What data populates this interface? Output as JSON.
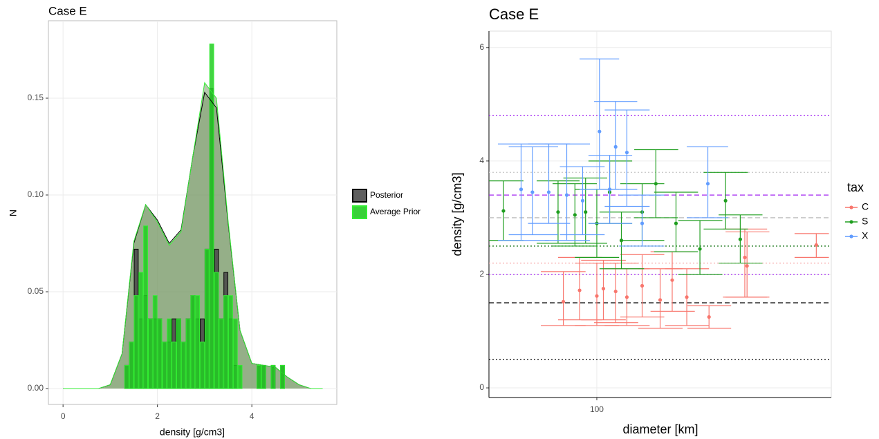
{
  "chart_data": [
    {
      "type": "histogram",
      "title": "Case E",
      "x_label": "density [g/cm3]",
      "y_label": "N",
      "xlim": [
        -0.31,
        5.8
      ],
      "ylim": [
        -0.0082,
        0.19
      ],
      "xticks": [
        0,
        2,
        4
      ],
      "yticks": [
        {
          "value": 0,
          "label": "0.00"
        },
        {
          "value": 0.05,
          "label": "0.05"
        },
        {
          "value": 0.1,
          "label": "0.10"
        },
        {
          "value": 0.15,
          "label": "0.15"
        }
      ],
      "grid": true,
      "bins": [
        1.2,
        1.3,
        1.4,
        1.5,
        1.6,
        1.7,
        1.8,
        1.9,
        2.0,
        2.1,
        2.2,
        2.3,
        2.4,
        2.5,
        2.6,
        2.7,
        2.8,
        2.9,
        3.0,
        3.1,
        3.2,
        3.3,
        3.4,
        3.5,
        3.6,
        3.7,
        3.8,
        3.9,
        4.0,
        4.1,
        4.2,
        4.3,
        4.4,
        4.5,
        4.6,
        4.7
      ],
      "density_x": [
        0,
        0.25,
        0.5,
        0.75,
        1,
        1.25,
        1.5,
        1.75,
        2,
        2.25,
        2.5,
        2.75,
        3,
        3.25,
        3.5,
        3.75,
        4,
        4.25,
        4.5,
        4.75,
        5,
        5.25,
        5.5
      ],
      "series": [
        {
          "name": "Posterior",
          "color": "#000000",
          "fill": "#4d4d4d",
          "counts": [
            0,
            0.012,
            0.024,
            0.072,
            0.036,
            0.048,
            0.036,
            0.036,
            0.036,
            0.024,
            0.024,
            0.036,
            0.036,
            0.024,
            0.036,
            0.048,
            0.036,
            0.036,
            0.072,
            0.155,
            0.072,
            0.036,
            0.06,
            0.036,
            0.012,
            0,
            0,
            0,
            0,
            0.012,
            0.012,
            0,
            0.012,
            0,
            0.012
          ],
          "density_values": [
            0,
            0,
            0,
            0,
            0.002,
            0.018,
            0.075,
            0.095,
            0.087,
            0.075,
            0.082,
            0.12,
            0.153,
            0.145,
            0.085,
            0.03,
            0.013,
            0.012,
            0.011,
            0.006,
            0.002,
            0,
            0
          ]
        },
        {
          "name": "Average Prior",
          "color": "#33ee33",
          "fill": "#22cc22",
          "counts": [
            0,
            0.012,
            0.024,
            0.048,
            0.06,
            0.084,
            0.036,
            0.048,
            0.036,
            0.024,
            0.036,
            0.024,
            0.036,
            0.024,
            0.036,
            0.048,
            0.048,
            0.024,
            0.072,
            0.178,
            0.06,
            0.036,
            0.048,
            0.048,
            0.036,
            0.012,
            0,
            0,
            0,
            0.012,
            0.012,
            0,
            0.012,
            0,
            0.012
          ],
          "density_values": [
            0,
            0,
            0,
            0,
            0.002,
            0.018,
            0.076,
            0.095,
            0.086,
            0.074,
            0.081,
            0.12,
            0.158,
            0.15,
            0.086,
            0.03,
            0.013,
            0.012,
            0.011,
            0.006,
            0.002,
            0,
            0
          ]
        }
      ]
    },
    {
      "type": "scatter",
      "title": "Case E",
      "x_label": "diameter [km]",
      "y_label": "density [g/cm3]",
      "log_x": true,
      "xlim": [
        44.9,
        570
      ],
      "ylim": [
        -0.17,
        6.29
      ],
      "xticks": [
        100
      ],
      "yticks": [
        0,
        2,
        4,
        6
      ],
      "grid": true,
      "legend_title": "tax",
      "hlines": [
        {
          "value": 0.5,
          "color": "#000000",
          "dash": "dotted"
        },
        {
          "value": 1.5,
          "color": "#000000",
          "dash": "dashed"
        },
        {
          "value": 2.0,
          "color": "#a020f0",
          "dash": "dotted"
        },
        {
          "value": 2.2,
          "color": "#f8b0b0",
          "dash": "dotted"
        },
        {
          "value": 2.5,
          "color": "#1f7a1f",
          "dash": "dotted"
        },
        {
          "value": 3.0,
          "color": "#bbbbbb",
          "dash": "dashed"
        },
        {
          "value": 3.4,
          "color": "#a020f0",
          "dash": "dashed"
        },
        {
          "value": 3.8,
          "color": "#cccccc",
          "dash": "dotted"
        },
        {
          "value": 4.8,
          "color": "#a020f0",
          "dash": "dotted"
        }
      ],
      "series": [
        {
          "name": "C",
          "color": "#f8766d",
          "x": [
            78,
            88,
            100,
            105,
            115,
            125,
            140,
            160,
            175,
            195,
            230,
            300,
            305,
            510
          ],
          "values": [
            1.52,
            1.72,
            1.62,
            1.75,
            1.7,
            1.6,
            1.8,
            1.55,
            1.9,
            1.6,
            1.25,
            2.3,
            2.15,
            2.52
          ],
          "ymin": [
            1.1,
            1.2,
            1.1,
            1.2,
            1.15,
            1.1,
            1.25,
            1.05,
            1.35,
            1.1,
            1.05,
            1.6,
            1.6,
            2.3
          ],
          "ymax": [
            2.05,
            2.3,
            2.2,
            2.25,
            2.2,
            2.1,
            2.35,
            2.1,
            2.4,
            2.1,
            1.45,
            2.8,
            2.75,
            2.72
          ],
          "xmin": [
            66,
            75,
            85,
            89,
            98,
            106,
            119,
            136,
            149,
            166,
            196,
            255,
            260,
            434
          ],
          "xmax": [
            92,
            104,
            118,
            124,
            136,
            148,
            165,
            189,
            207,
            230,
            271,
            354,
            360,
            560
          ]
        },
        {
          "name": "S",
          "color": "#1f9e1f",
          "x": [
            50,
            75,
            85,
            92,
            100,
            110,
            120,
            140,
            155,
            180,
            215,
            260,
            290
          ],
          "values": [
            3.12,
            3.1,
            3.05,
            3.1,
            2.9,
            3.45,
            2.6,
            3.1,
            3.6,
            2.9,
            2.45,
            3.3,
            2.62
          ],
          "ymin": [
            2.6,
            2.55,
            2.5,
            2.55,
            2.3,
            2.9,
            2.1,
            2.6,
            3.0,
            2.4,
            2.0,
            2.8,
            2.2
          ],
          "ymax": [
            3.65,
            3.65,
            3.6,
            3.7,
            3.5,
            4.0,
            3.1,
            3.6,
            4.2,
            3.45,
            2.95,
            3.8,
            3.05
          ],
          "xmin": [
            44.9,
            64,
            72,
            78,
            85,
            94,
            102,
            119,
            132,
            153,
            183,
            221,
            247
          ],
          "xmax": [
            58,
            88,
            100,
            108,
            118,
            130,
            142,
            165,
            183,
            212,
            254,
            307,
            342
          ]
        },
        {
          "name": "X",
          "color": "#619cff",
          "x": [
            57,
            62,
            70,
            80,
            90,
            102,
            110,
            115,
            125,
            140,
            228
          ],
          "values": [
            3.5,
            3.45,
            3.45,
            3.4,
            3.3,
            4.52,
            3.5,
            4.25,
            4.15,
            2.9,
            3.6
          ],
          "ymin": [
            2.6,
            2.7,
            2.9,
            2.6,
            2.7,
            3.5,
            2.9,
            3.5,
            3.2,
            2.5,
            3.0
          ],
          "ymax": [
            4.3,
            4.25,
            4.3,
            4.3,
            3.9,
            5.8,
            4.1,
            5.05,
            4.9,
            3.4,
            4.25
          ],
          "xmin": [
            48,
            52,
            60,
            68,
            76,
            88,
            94,
            98,
            106,
            118,
            195
          ],
          "xmax": [
            70,
            75,
            82,
            95,
            106,
            118,
            130,
            135,
            148,
            165,
            265
          ]
        }
      ]
    }
  ]
}
